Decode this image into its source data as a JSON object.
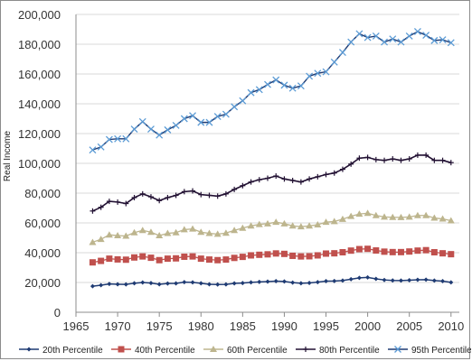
{
  "chart_data": {
    "type": "line",
    "title": "",
    "xlabel": "",
    "ylabel": "Real Income",
    "xlim": [
      1965,
      2011
    ],
    "ylim": [
      0,
      200000
    ],
    "x_ticks": [
      1965,
      1970,
      1975,
      1980,
      1985,
      1990,
      1995,
      2000,
      2005,
      2010
    ],
    "y_ticks": [
      0,
      20000,
      40000,
      60000,
      80000,
      100000,
      120000,
      140000,
      160000,
      180000,
      200000
    ],
    "y_tick_labels": [
      "0",
      "20,000",
      "40,000",
      "60,000",
      "80,000",
      "100,000",
      "120,000",
      "140,000",
      "160,000",
      "180,000",
      "200,000"
    ],
    "x_tick_labels": [
      "1965",
      "1970",
      "1975",
      "1980",
      "1985",
      "1990",
      "1995",
      "2000",
      "2005",
      "2010"
    ],
    "grid": "horizontal",
    "legend_position": "bottom",
    "x": [
      1967,
      1968,
      1969,
      1970,
      1971,
      1972,
      1973,
      1974,
      1975,
      1976,
      1977,
      1978,
      1979,
      1980,
      1981,
      1982,
      1983,
      1984,
      1985,
      1986,
      1987,
      1988,
      1989,
      1990,
      1991,
      1992,
      1993,
      1994,
      1995,
      1996,
      1997,
      1998,
      1999,
      2000,
      2001,
      2002,
      2003,
      2004,
      2005,
      2006,
      2007,
      2008,
      2009,
      2010
    ],
    "series": [
      {
        "name": "20th Percentile",
        "color": "#1f3b73",
        "marker": "diamond",
        "values": [
          17500,
          18200,
          19000,
          18800,
          18700,
          19500,
          20000,
          19600,
          18800,
          19300,
          19400,
          20200,
          20100,
          19500,
          18800,
          18600,
          18700,
          19400,
          19600,
          20100,
          20400,
          20600,
          20900,
          20700,
          19900,
          19500,
          19700,
          20200,
          20900,
          21000,
          21300,
          22200,
          23100,
          23400,
          22400,
          21700,
          21400,
          21300,
          21500,
          21800,
          21900,
          21300,
          20900,
          20100
        ]
      },
      {
        "name": "40th Percentile",
        "color": "#c0504d",
        "marker": "square",
        "values": [
          33500,
          34500,
          36000,
          35500,
          35300,
          36800,
          37500,
          36600,
          35000,
          36000,
          36200,
          37300,
          37500,
          36000,
          35400,
          35000,
          35400,
          36500,
          37200,
          38200,
          38600,
          38900,
          39500,
          39200,
          37900,
          37500,
          37600,
          38200,
          39400,
          39600,
          40300,
          41400,
          42400,
          42600,
          41500,
          40700,
          40400,
          40400,
          40800,
          41400,
          41700,
          40300,
          39600,
          39000
        ]
      },
      {
        "name": "60th Percentile",
        "color": "#bdb58e",
        "marker": "triangle",
        "values": [
          47000,
          49000,
          52000,
          51500,
          51200,
          53500,
          55000,
          53800,
          51500,
          53000,
          53500,
          55500,
          56000,
          53800,
          53000,
          52500,
          53200,
          55000,
          56500,
          58000,
          59000,
          59500,
          60500,
          59500,
          58000,
          57500,
          58000,
          58800,
          60500,
          61000,
          62500,
          64500,
          66000,
          66500,
          65000,
          64000,
          63800,
          63700,
          64000,
          65000,
          65000,
          63300,
          62700,
          61500
        ]
      },
      {
        "name": "80th Percentile",
        "color": "#221133",
        "marker": "cross",
        "values": [
          68000,
          70500,
          74500,
          74000,
          73000,
          77000,
          79500,
          77500,
          75000,
          77000,
          78500,
          81000,
          81500,
          79000,
          78500,
          78000,
          79500,
          82500,
          85000,
          87500,
          89000,
          90000,
          91500,
          89500,
          88500,
          87500,
          89500,
          91000,
          92500,
          93500,
          96000,
          99500,
          103500,
          104000,
          102500,
          102000,
          103000,
          102000,
          103000,
          105500,
          105500,
          102000,
          102000,
          100500
        ]
      },
      {
        "name": "95th Percentile",
        "color": "#5b9bd5",
        "marker": "x",
        "values": [
          109000,
          111000,
          116000,
          116500,
          116500,
          123000,
          128000,
          123000,
          119000,
          122500,
          125500,
          130000,
          132000,
          127500,
          127500,
          131500,
          133000,
          138000,
          142000,
          147500,
          149500,
          153000,
          156000,
          152500,
          150500,
          152000,
          158500,
          160500,
          161500,
          168000,
          174500,
          181500,
          187000,
          184500,
          185500,
          181500,
          183500,
          181500,
          185500,
          188500,
          186000,
          182500,
          183000,
          181000
        ]
      }
    ]
  }
}
